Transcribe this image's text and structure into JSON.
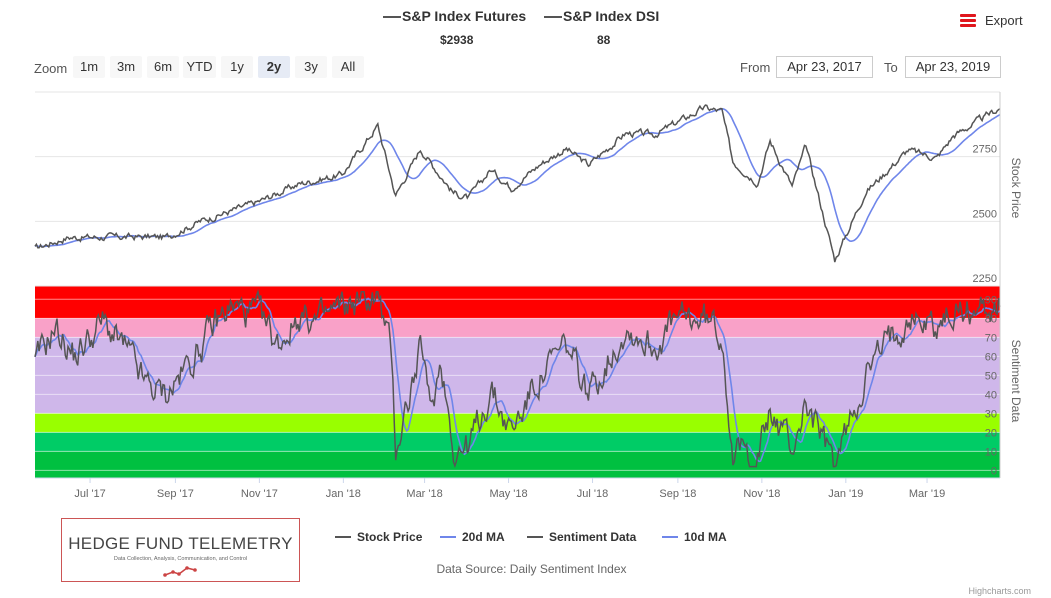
{
  "header": {
    "series": [
      {
        "name": "S&P Index Futures",
        "value": "$2938"
      },
      {
        "name": "S&P Index DSI",
        "value": "88"
      }
    ],
    "export_label": "Export"
  },
  "zoom": {
    "label": "Zoom",
    "buttons": [
      "1m",
      "3m",
      "6m",
      "YTD",
      "1y",
      "2y",
      "3y",
      "All"
    ],
    "active": "2y"
  },
  "range": {
    "from_label": "From",
    "from_value": "Apr 23, 2017",
    "to_label": "To",
    "to_value": "Apr 23, 2019"
  },
  "legend": [
    {
      "name": "Stock Price",
      "color": "#555555"
    },
    {
      "name": "20d MA",
      "color": "#6f86ea"
    },
    {
      "name": "Sentiment Data",
      "color": "#555555"
    },
    {
      "name": "10d MA",
      "color": "#6f86ea"
    }
  ],
  "logo": {
    "title": "HEDGE FUND TELEMETRY",
    "subtitle": "Data Collection, Analysis, Communication, and Control"
  },
  "source": "Data Source: Daily Sentiment Index",
  "credits": "Highcharts.com",
  "chart_data": {
    "type": "line",
    "x_range": [
      "2017-05-22",
      "2019-04-23"
    ],
    "x_ticks": [
      "Jul '17",
      "Sep '17",
      "Nov '17",
      "Jan '18",
      "Mar '18",
      "May '18",
      "Jul '18",
      "Sep '18",
      "Nov '18",
      "Jan '19",
      "Mar '19"
    ],
    "price_axis": {
      "label": "Stock Price",
      "ticks": [
        2250,
        2500,
        2750
      ],
      "range": [
        2250,
        3000
      ]
    },
    "sentiment_axis": {
      "label": "Sentiment Data",
      "ticks": [
        0,
        10,
        20,
        30,
        40,
        50,
        60,
        70,
        80,
        90
      ],
      "range": [
        -4,
        97
      ],
      "bands": [
        {
          "from": 80,
          "to": 97,
          "color": "#ff0000"
        },
        {
          "from": 70,
          "to": 80,
          "color": "#f9a1c8"
        },
        {
          "from": 30,
          "to": 70,
          "color": "#cfb7ea"
        },
        {
          "from": 20,
          "to": 30,
          "color": "#99ff00"
        },
        {
          "from": 10,
          "to": 20,
          "color": "#00cc66"
        },
        {
          "from": -4,
          "to": 10,
          "color": "#00c040"
        }
      ]
    },
    "price_keypoints": [
      [
        "2017-05-22",
        2395
      ],
      [
        "2017-06-15",
        2438
      ],
      [
        "2017-08-10",
        2440
      ],
      [
        "2017-08-25",
        2438
      ],
      [
        "2017-09-20",
        2502
      ],
      [
        "2017-10-31",
        2575
      ],
      [
        "2017-11-30",
        2645
      ],
      [
        "2017-12-31",
        2680
      ],
      [
        "2018-01-26",
        2870
      ],
      [
        "2018-02-08",
        2600
      ],
      [
        "2018-02-26",
        2780
      ],
      [
        "2018-03-22",
        2610
      ],
      [
        "2018-04-02",
        2590
      ],
      [
        "2018-04-18",
        2700
      ],
      [
        "2018-05-03",
        2630
      ],
      [
        "2018-05-25",
        2725
      ],
      [
        "2018-06-12",
        2780
      ],
      [
        "2018-06-28",
        2718
      ],
      [
        "2018-07-25",
        2840
      ],
      [
        "2018-08-15",
        2835
      ],
      [
        "2018-09-20",
        2938
      ],
      [
        "2018-10-03",
        2925
      ],
      [
        "2018-10-11",
        2730
      ],
      [
        "2018-10-29",
        2650
      ],
      [
        "2018-11-07",
        2810
      ],
      [
        "2018-11-23",
        2635
      ],
      [
        "2018-12-03",
        2790
      ],
      [
        "2018-12-24",
        2350
      ],
      [
        "2019-01-15",
        2610
      ],
      [
        "2019-02-15",
        2775
      ],
      [
        "2019-03-08",
        2745
      ],
      [
        "2019-03-20",
        2830
      ],
      [
        "2019-04-23",
        2938
      ]
    ],
    "sentiment_keypoints": [
      [
        "2017-05-22",
        55
      ],
      [
        "2017-06-05",
        75
      ],
      [
        "2017-06-20",
        60
      ],
      [
        "2017-07-10",
        78
      ],
      [
        "2017-07-28",
        62
      ],
      [
        "2017-08-10",
        45
      ],
      [
        "2017-08-25",
        40
      ],
      [
        "2017-09-10",
        55
      ],
      [
        "2017-09-28",
        75
      ],
      [
        "2017-10-10",
        86
      ],
      [
        "2017-10-31",
        82
      ],
      [
        "2017-11-14",
        66
      ],
      [
        "2017-11-30",
        82
      ],
      [
        "2017-12-14",
        78
      ],
      [
        "2017-12-31",
        86
      ],
      [
        "2018-01-26",
        92
      ],
      [
        "2018-02-05",
        60
      ],
      [
        "2018-02-08",
        12
      ],
      [
        "2018-02-20",
        45
      ],
      [
        "2018-02-27",
        65
      ],
      [
        "2018-03-05",
        30
      ],
      [
        "2018-03-13",
        58
      ],
      [
        "2018-03-23",
        10
      ],
      [
        "2018-04-02",
        12
      ],
      [
        "2018-04-18",
        42
      ],
      [
        "2018-05-03",
        20
      ],
      [
        "2018-05-22",
        48
      ],
      [
        "2018-06-12",
        65
      ],
      [
        "2018-06-28",
        40
      ],
      [
        "2018-07-25",
        75
      ],
      [
        "2018-08-15",
        65
      ],
      [
        "2018-08-30",
        78
      ],
      [
        "2018-09-20",
        80
      ],
      [
        "2018-10-03",
        72
      ],
      [
        "2018-10-11",
        10
      ],
      [
        "2018-10-29",
        8
      ],
      [
        "2018-11-07",
        30
      ],
      [
        "2018-11-23",
        12
      ],
      [
        "2018-12-03",
        35
      ],
      [
        "2018-12-24",
        2
      ],
      [
        "2019-01-15",
        50
      ],
      [
        "2019-02-01",
        68
      ],
      [
        "2019-02-15",
        82
      ],
      [
        "2019-03-08",
        76
      ],
      [
        "2019-03-22",
        84
      ],
      [
        "2019-04-10",
        85
      ],
      [
        "2019-04-23",
        88
      ]
    ]
  }
}
